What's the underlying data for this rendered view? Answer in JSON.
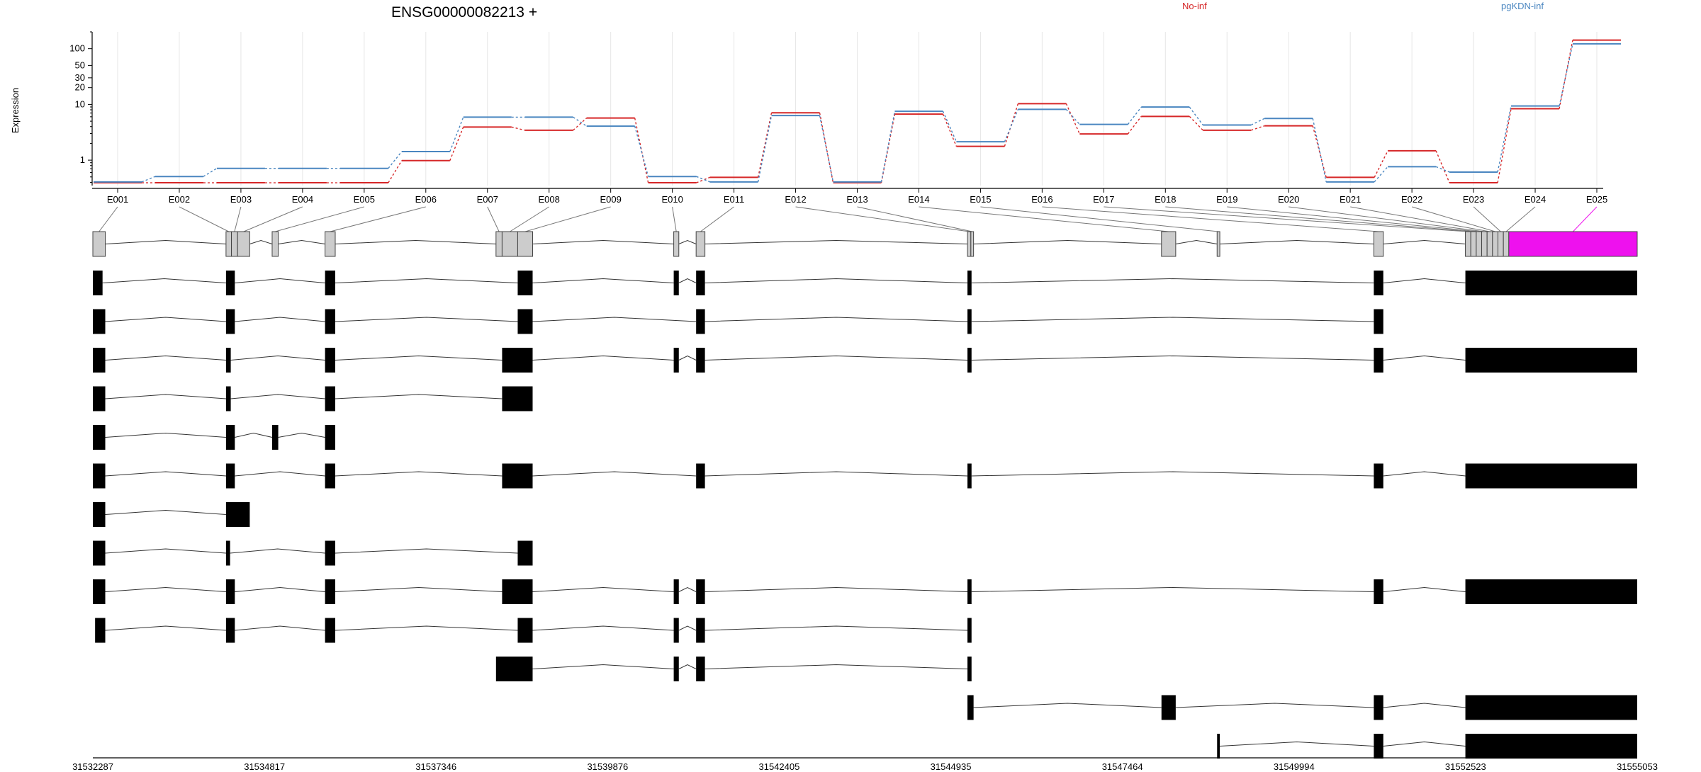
{
  "title": "ENSG00000082213 +",
  "ylabel": "Expression",
  "legend": [
    {
      "label": "No-inf",
      "color": "#d62728"
    },
    {
      "label": "pgKDN-inf",
      "color": "#4a86c0"
    }
  ],
  "colors": {
    "highlight": "#ee11ee",
    "exon_grey": "#cccccc",
    "exon_black": "#000000",
    "grid": "#e6e6e6",
    "connector": "#777777"
  },
  "chart_data": {
    "type": "line",
    "yscale": "log",
    "ylim": [
      0.35,
      200
    ],
    "yticks": [
      1,
      10,
      20,
      30,
      50,
      100
    ],
    "ytick_labels": [
      "1",
      "10",
      "20",
      "30",
      "50",
      "100"
    ],
    "xlim": [
      31532287,
      31555053
    ],
    "xticks": [
      31532287,
      31534817,
      31537346,
      31539876,
      31542405,
      31544935,
      31547464,
      31549994,
      31552523,
      31555053
    ],
    "xtick_labels": [
      "31532287",
      "31534817",
      "31537346",
      "31539876",
      "31542405",
      "31544935",
      "31547464",
      "31549994",
      "31552523",
      "31555053"
    ],
    "categories": [
      "E001",
      "E002",
      "E003",
      "E004",
      "E005",
      "E006",
      "E007",
      "E008",
      "E009",
      "E010",
      "E011",
      "E012",
      "E013",
      "E014",
      "E015",
      "E016",
      "E017",
      "E018",
      "E019",
      "E020",
      "E021",
      "E022",
      "E023",
      "E024",
      "E025"
    ],
    "series": [
      {
        "name": "No-inf",
        "values": [
          0.4,
          0.4,
          0.4,
          0.4,
          0.4,
          1.0,
          4.0,
          3.5,
          5.8,
          0.4,
          0.5,
          7.2,
          0.4,
          6.8,
          1.8,
          10.5,
          3.0,
          6.2,
          3.5,
          4.2,
          0.5,
          1.5,
          0.4,
          8.5,
          145
        ]
      },
      {
        "name": "pgKDN-inf",
        "values": [
          0.4,
          0.5,
          0.7,
          0.7,
          0.7,
          1.4,
          5.8,
          5.8,
          4.0,
          0.5,
          0.4,
          6.2,
          0.4,
          7.4,
          2.1,
          8.0,
          4.3,
          8.8,
          4.2,
          5.5,
          0.4,
          0.75,
          0.6,
          9.2,
          120
        ]
      }
    ],
    "exons": [
      {
        "id": "E001",
        "start": 31532287,
        "end": 31532470
      },
      {
        "id": "E002",
        "start": 31534250,
        "end": 31534330
      },
      {
        "id": "E003",
        "start": 31534330,
        "end": 31534420
      },
      {
        "id": "E004",
        "start": 31534420,
        "end": 31534600
      },
      {
        "id": "E005",
        "start": 31534930,
        "end": 31535020
      },
      {
        "id": "E006",
        "start": 31535710,
        "end": 31535860
      },
      {
        "id": "E007",
        "start": 31538230,
        "end": 31538320
      },
      {
        "id": "E008",
        "start": 31538320,
        "end": 31538550
      },
      {
        "id": "E009",
        "start": 31538550,
        "end": 31538770
      },
      {
        "id": "E010",
        "start": 31540850,
        "end": 31540925
      },
      {
        "id": "E011",
        "start": 31541180,
        "end": 31541310
      },
      {
        "id": "E012",
        "start": 31545180,
        "end": 31545230
      },
      {
        "id": "E013",
        "start": 31545230,
        "end": 31545270
      },
      {
        "id": "E014",
        "start": 31548040,
        "end": 31548250
      },
      {
        "id": "E015",
        "start": 31548860,
        "end": 31548900
      },
      {
        "id": "E016",
        "start": 31551170,
        "end": 31551310
      },
      {
        "id": "E017",
        "start": 31552520,
        "end": 31552600
      },
      {
        "id": "E018",
        "start": 31552600,
        "end": 31552680
      },
      {
        "id": "E019",
        "start": 31552680,
        "end": 31552760
      },
      {
        "id": "E020",
        "start": 31552760,
        "end": 31552840
      },
      {
        "id": "E021",
        "start": 31552840,
        "end": 31552920
      },
      {
        "id": "E022",
        "start": 31552920,
        "end": 31553000
      },
      {
        "id": "E023",
        "start": 31553000,
        "end": 31553080
      },
      {
        "id": "E024",
        "start": 31553080,
        "end": 31553160
      },
      {
        "id": "E025",
        "start": 31553160,
        "end": 31555053
      }
    ],
    "highlight_exon": "E025",
    "transcripts": [
      [
        [
          31532287,
          31532430
        ],
        [
          31534250,
          31534380
        ],
        [
          31535710,
          31535860
        ],
        [
          31538550,
          31538770
        ],
        [
          31540850,
          31540925
        ],
        [
          31541180,
          31541310
        ],
        [
          31545180,
          31545240
        ],
        [
          31551170,
          31551310
        ],
        [
          31552520,
          31555053
        ]
      ],
      [
        [
          31532287,
          31532470
        ],
        [
          31534250,
          31534380
        ],
        [
          31535710,
          31535860
        ],
        [
          31538550,
          31538770
        ],
        [
          31541180,
          31541310
        ],
        [
          31545180,
          31545240
        ],
        [
          31551170,
          31551310
        ]
      ],
      [
        [
          31532287,
          31532470
        ],
        [
          31534250,
          31534320
        ],
        [
          31535710,
          31535860
        ],
        [
          31538320,
          31538770
        ],
        [
          31540850,
          31540925
        ],
        [
          31541180,
          31541310
        ],
        [
          31545180,
          31545240
        ],
        [
          31551170,
          31551310
        ],
        [
          31552520,
          31555053
        ]
      ],
      [
        [
          31532287,
          31532470
        ],
        [
          31534250,
          31534320
        ],
        [
          31535710,
          31535860
        ],
        [
          31538320,
          31538770
        ]
      ],
      [
        [
          31532287,
          31532470
        ],
        [
          31534250,
          31534380
        ],
        [
          31534930,
          31535020
        ],
        [
          31535710,
          31535860
        ]
      ],
      [
        [
          31532287,
          31532470
        ],
        [
          31534250,
          31534380
        ],
        [
          31535710,
          31535860
        ],
        [
          31538320,
          31538770
        ],
        [
          31541180,
          31541310
        ],
        [
          31545180,
          31545240
        ],
        [
          31551170,
          31551310
        ],
        [
          31552520,
          31555053
        ]
      ],
      [
        [
          31532287,
          31532470
        ],
        [
          31534250,
          31534600
        ]
      ],
      [
        [
          31532287,
          31532470
        ],
        [
          31534250,
          31534310
        ],
        [
          31535710,
          31535860
        ],
        [
          31538550,
          31538770
        ]
      ],
      [
        [
          31532287,
          31532470
        ],
        [
          31534250,
          31534380
        ],
        [
          31535710,
          31535860
        ],
        [
          31538320,
          31538770
        ],
        [
          31540850,
          31540925
        ],
        [
          31541180,
          31541310
        ],
        [
          31545180,
          31545240
        ],
        [
          31551170,
          31551310
        ],
        [
          31552520,
          31555053
        ]
      ],
      [
        [
          31532320,
          31532470
        ],
        [
          31534250,
          31534380
        ],
        [
          31535710,
          31535860
        ],
        [
          31538550,
          31538770
        ],
        [
          31540850,
          31540925
        ],
        [
          31541180,
          31541310
        ],
        [
          31545180,
          31545240
        ]
      ],
      [
        [
          31538230,
          31538770
        ],
        [
          31540850,
          31540925
        ],
        [
          31541180,
          31541310
        ],
        [
          31545180,
          31545240
        ]
      ],
      [
        [
          31545180,
          31545270
        ],
        [
          31548040,
          31548250
        ],
        [
          31551170,
          31551310
        ],
        [
          31552520,
          31555053
        ]
      ],
      [
        [
          31548860,
          31548900
        ],
        [
          31551170,
          31551310
        ],
        [
          31552520,
          31555053
        ]
      ]
    ]
  }
}
